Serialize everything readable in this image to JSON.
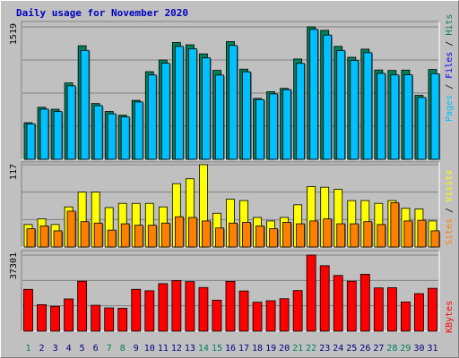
{
  "chart_data": {
    "type": "bar",
    "title": "Daily usage for November 2020",
    "categories": [
      "1",
      "2",
      "3",
      "4",
      "5",
      "6",
      "7",
      "8",
      "9",
      "10",
      "11",
      "12",
      "13",
      "14",
      "15",
      "16",
      "17",
      "18",
      "19",
      "20",
      "21",
      "22",
      "23",
      "24",
      "25",
      "26",
      "27",
      "28",
      "29",
      "30",
      "31"
    ],
    "weekend_days": [
      1,
      7,
      8,
      14,
      15,
      21,
      22,
      28,
      29
    ],
    "panels": [
      {
        "id": "hits-files",
        "ymax_label": "1519",
        "ymax": 1519,
        "side_label": {
          "first": "Pages",
          "sep1": " / ",
          "second": "Files",
          "sep2": " / ",
          "third": "Hits"
        },
        "series": [
          {
            "name": "Hits",
            "color": "#00805c",
            "values": [
              420,
              596,
              574,
              876,
              1302,
              640,
              549,
              506,
              676,
              1005,
              1139,
              1339,
              1313,
              1209,
              1020,
              1350,
              1034,
              698,
              775,
              813,
              1150,
              1519,
              1479,
              1295,
              1170,
              1263,
              1024,
              1019,
              1023,
              733,
              1030
            ]
          },
          {
            "name": "Files",
            "color": "#00c0ff",
            "values": [
              407,
              575,
              548,
              843,
              1249,
              616,
              522,
              486,
              658,
              967,
              1102,
              1295,
              1268,
              1163,
              966,
              1305,
              1003,
              685,
              750,
              799,
              1100,
              1490,
              1425,
              1246,
              1133,
              1223,
              985,
              968,
              969,
              709,
              982
            ]
          }
        ]
      },
      {
        "id": "visits-sites",
        "ymax_label": "117",
        "ymax": 117,
        "side_label": {
          "first": "Sites",
          "sep1": " / ",
          "second": "Visits"
        },
        "series": [
          {
            "name": "Visits",
            "color": "#ffff00",
            "values": [
              32,
              40,
              32,
              57,
              78,
              78,
              56,
              62,
              62,
              62,
              57,
              90,
              97,
              117,
              48,
              68,
              66,
              42,
              37,
              42,
              60,
              86,
              85,
              82,
              66,
              66,
              62,
              66,
              55,
              54,
              37
            ]
          },
          {
            "name": "Sites",
            "color": "#ff8000",
            "values": [
              26,
              30,
              23,
              51,
              36,
              34,
              24,
              33,
              31,
              31,
              34,
              43,
              42,
              37,
              27,
              34,
              35,
              30,
              26,
              35,
              33,
              37,
              40,
              33,
              33,
              36,
              32,
              63,
              37,
              38,
              23
            ]
          }
        ]
      },
      {
        "id": "kbytes",
        "ymax_label": "37301",
        "ymax": 37301,
        "side_label": {
          "first": "KBytes"
        },
        "series": [
          {
            "name": "KBytes",
            "color": "#ff0000",
            "values": [
              20500,
              13000,
              12200,
              15800,
              24500,
              12700,
              11400,
              11200,
              20500,
              19800,
              23300,
              24800,
              24300,
              21400,
              15200,
              24400,
              19700,
              14200,
              14900,
              15900,
              19900,
              37301,
              32100,
              27300,
              24500,
              27900,
              21200,
              21300,
              14300,
              18400,
              21000
            ]
          }
        ]
      }
    ]
  }
}
